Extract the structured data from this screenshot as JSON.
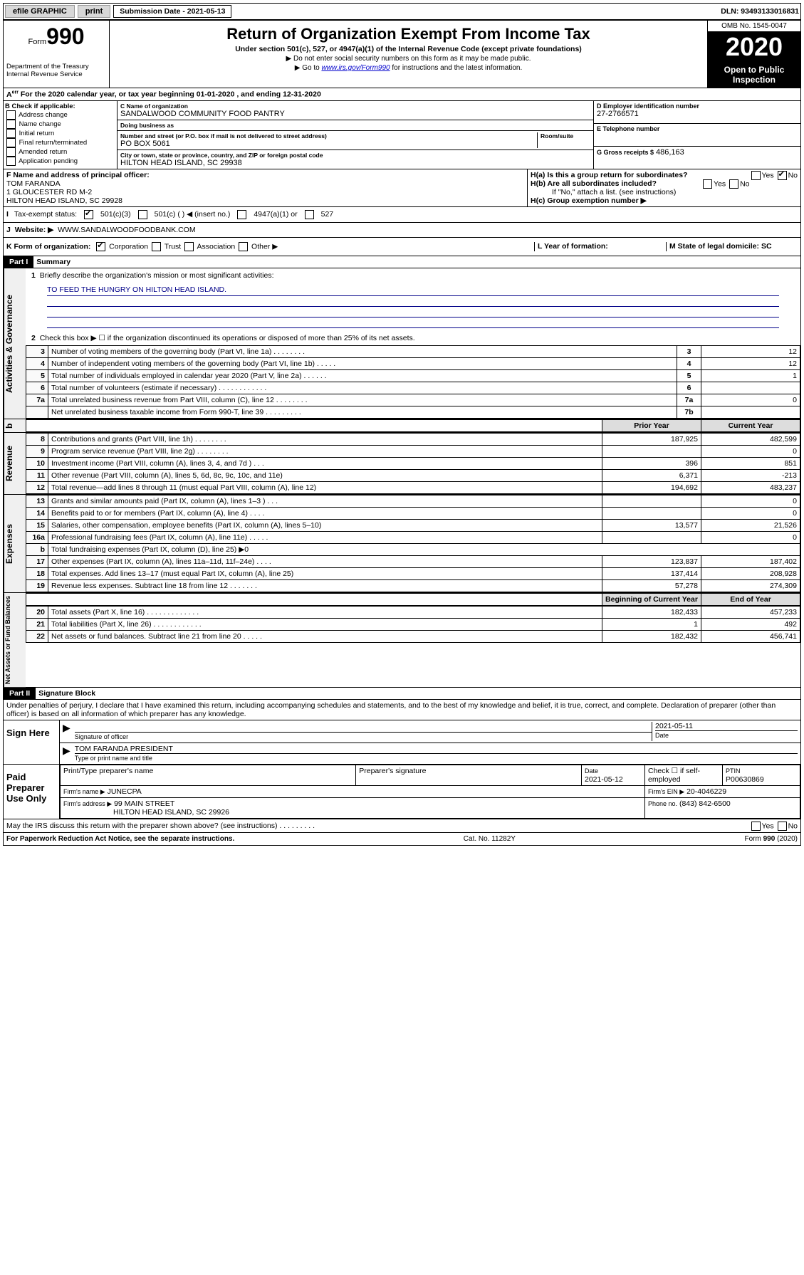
{
  "topbar": {
    "efile": "efile GRAPHIC",
    "print": "print",
    "sub_label": "Submission Date - 2021-05-13",
    "dln": "DLN: 93493133016831"
  },
  "header": {
    "form": "990",
    "dept": "Department of the Treasury\nInternal Revenue Service",
    "title": "Return of Organization Exempt From Income Tax",
    "sub": "Under section 501(c), 527, or 4947(a)(1) of the Internal Revenue Code (except private foundations)",
    "note1": "▶ Do not enter social security numbers on this form as it may be made public.",
    "note2": "▶ Go to www.irs.gov/Form990 for instructions and the latest information.",
    "omb": "OMB No. 1545-0047",
    "year": "2020",
    "open": "Open to Public Inspection"
  },
  "rowA": "For the 2020 calendar year, or tax year beginning 01-01-2020   , and ending 12-31-2020",
  "B": {
    "label": "B Check if applicable:",
    "items": [
      "Address change",
      "Name change",
      "Initial return",
      "Final return/terminated",
      "Amended return",
      "Application pending"
    ]
  },
  "C": {
    "name_lbl": "C Name of organization",
    "name": "SANDALWOOD COMMUNITY FOOD PANTRY",
    "dba_lbl": "Doing business as",
    "dba": "",
    "addr_lbl": "Number and street (or P.O. box if mail is not delivered to street address)",
    "room_lbl": "Room/suite",
    "addr": "PO BOX 5061",
    "city_lbl": "City or town, state or province, country, and ZIP or foreign postal code",
    "city": "HILTON HEAD ISLAND, SC  29938"
  },
  "D": {
    "lbl": "D Employer identification number",
    "val": "27-2766571"
  },
  "E": {
    "lbl": "E Telephone number",
    "val": ""
  },
  "G": {
    "lbl": "G Gross receipts $",
    "val": "486,163"
  },
  "F": {
    "lbl": "F  Name and address of principal officer:",
    "name": "TOM FARANDA",
    "addr1": "1 GLOUCESTER RD M-2",
    "addr2": "HILTON HEAD ISLAND, SC  29928"
  },
  "H": {
    "a": "H(a)  Is this a group return for subordinates?",
    "a_no": true,
    "b": "H(b)  Are all subordinates included?",
    "b_note": "If \"No,\" attach a list. (see instructions)",
    "c": "H(c)  Group exemption number ▶"
  },
  "I": {
    "lbl": "Tax-exempt status:",
    "c3": true,
    "c": "501(c) (  ) ◀ (insert no.)",
    "a1": "4947(a)(1) or",
    "s527": "527"
  },
  "J": {
    "lbl": "Website: ▶",
    "val": "WWW.SANDALWOODFOODBANK.COM"
  },
  "K": {
    "lbl": "K Form of organization:",
    "corp": true,
    "items": [
      "Corporation",
      "Trust",
      "Association",
      "Other ▶"
    ]
  },
  "L": {
    "lbl": "L Year of formation:",
    "val": ""
  },
  "M": {
    "lbl": "M State of legal domicile: SC"
  },
  "partI": {
    "hdr": "Part I",
    "title": "Summary"
  },
  "summary": {
    "l1": "Briefly describe the organization's mission or most significant activities:",
    "mission": "TO FEED THE HUNGRY ON HILTON HEAD ISLAND.",
    "l2": "Check this box ▶ ☐  if the organization discontinued its operations or disposed of more than 25% of its net assets.",
    "rows": [
      {
        "n": "3",
        "t": "Number of voting members of the governing body (Part VI, line 1a)   .    .    .    .    .    .    .    .",
        "c": "3",
        "v": "12"
      },
      {
        "n": "4",
        "t": "Number of independent voting members of the governing body (Part VI, line 1b)  .    .    .    .    .",
        "c": "4",
        "v": "12"
      },
      {
        "n": "5",
        "t": "Total number of individuals employed in calendar year 2020 (Part V, line 2a)   .    .    .    .    .    .",
        "c": "5",
        "v": "1"
      },
      {
        "n": "6",
        "t": "Total number of volunteers (estimate if necessary)   .    .    .    .    .    .    .    .    .    .    .    .",
        "c": "6",
        "v": ""
      },
      {
        "n": "7a",
        "t": "Total unrelated business revenue from Part VIII, column (C), line 12   .    .    .    .    .    .    .    .",
        "c": "7a",
        "v": "0"
      },
      {
        "n": "",
        "t": "Net unrelated business taxable income from Form 990-T, line 39   .    .    .    .    .    .    .    .    .",
        "c": "7b",
        "v": ""
      }
    ],
    "colhdr_prior": "Prior Year",
    "colhdr_curr": "Current Year"
  },
  "revenue": [
    {
      "n": "8",
      "t": "Contributions and grants (Part VIII, line 1h)   .    .    .    .    .    .    .    .",
      "p": "187,925",
      "c": "482,599"
    },
    {
      "n": "9",
      "t": "Program service revenue (Part VIII, line 2g)   .    .    .    .    .    .    .    .",
      "p": "",
      "c": "0"
    },
    {
      "n": "10",
      "t": "Investment income (Part VIII, column (A), lines 3, 4, and 7d )   .    .    .",
      "p": "396",
      "c": "851"
    },
    {
      "n": "11",
      "t": "Other revenue (Part VIII, column (A), lines 5, 6d, 8c, 9c, 10c, and 11e)",
      "p": "6,371",
      "c": "-213"
    },
    {
      "n": "12",
      "t": "Total revenue—add lines 8 through 11 (must equal Part VIII, column (A), line 12)",
      "p": "194,692",
      "c": "483,237"
    }
  ],
  "expenses": [
    {
      "n": "13",
      "t": "Grants and similar amounts paid (Part IX, column (A), lines 1–3 )   .    .    .",
      "p": "",
      "c": "0"
    },
    {
      "n": "14",
      "t": "Benefits paid to or for members (Part IX, column (A), line 4)   .    .    .    .",
      "p": "",
      "c": "0"
    },
    {
      "n": "15",
      "t": "Salaries, other compensation, employee benefits (Part IX, column (A), lines 5–10)",
      "p": "13,577",
      "c": "21,526"
    },
    {
      "n": "16a",
      "t": "Professional fundraising fees (Part IX, column (A), line 11e)   .    .    .    .    .",
      "p": "",
      "c": "0"
    },
    {
      "n": "b",
      "t": "Total fundraising expenses (Part IX, column (D), line 25) ▶0",
      "p": "—",
      "c": "—"
    },
    {
      "n": "17",
      "t": "Other expenses (Part IX, column (A), lines 11a–11d, 11f–24e)   .    .    .    .",
      "p": "123,837",
      "c": "187,402"
    },
    {
      "n": "18",
      "t": "Total expenses. Add lines 13–17 (must equal Part IX, column (A), line 25)",
      "p": "137,414",
      "c": "208,928"
    },
    {
      "n": "19",
      "t": "Revenue less expenses. Subtract line 18 from line 12   .    .    .    .    .    .    .",
      "p": "57,278",
      "c": "274,309"
    }
  ],
  "netassets": {
    "hdr_beg": "Beginning of Current Year",
    "hdr_end": "End of Year",
    "rows": [
      {
        "n": "20",
        "t": "Total assets (Part X, line 16)   .    .    .    .    .    .    .    .    .    .    .    .    .",
        "p": "182,433",
        "c": "457,233"
      },
      {
        "n": "21",
        "t": "Total liabilities (Part X, line 26)   .    .    .    .    .    .    .    .    .    .    .    .",
        "p": "1",
        "c": "492"
      },
      {
        "n": "22",
        "t": "Net assets or fund balances. Subtract line 21 from line 20   .    .    .    .    .",
        "p": "182,432",
        "c": "456,741"
      }
    ]
  },
  "partII": {
    "hdr": "Part II",
    "title": "Signature Block",
    "decl": "Under penalties of perjury, I declare that I have examined this return, including accompanying schedules and statements, and to the best of my knowledge and belief, it is true, correct, and complete. Declaration of preparer (other than officer) is based on all information of which preparer has any knowledge."
  },
  "sign": {
    "lbl": "Sign Here",
    "sig": "Signature of officer",
    "date": "2021-05-11",
    "date_lbl": "Date",
    "name": "TOM FARANDA PRESIDENT",
    "name_lbl": "Type or print name and title"
  },
  "paid": {
    "lbl": "Paid Preparer Use Only",
    "h1": "Print/Type preparer's name",
    "h2": "Preparer's signature",
    "h3": "Date",
    "h3v": "2021-05-12",
    "h4": "Check ☐ if self-employed",
    "h5": "PTIN",
    "h5v": "P00630869",
    "firm_lbl": "Firm's name   ▶",
    "firm": "JUNECPA",
    "ein_lbl": "Firm's EIN ▶",
    "ein": "20-4046229",
    "addr_lbl": "Firm's address ▶",
    "addr1": "99 MAIN STREET",
    "addr2": "HILTON HEAD ISLAND, SC  29926",
    "ph_lbl": "Phone no.",
    "ph": "(843) 842-6500"
  },
  "discuss": "May the IRS discuss this return with the preparer shown above? (see instructions)    .    .    .    .    .    .    .    .    .",
  "footer": {
    "l": "For Paperwork Reduction Act Notice, see the separate instructions.",
    "c": "Cat. No. 11282Y",
    "r": "Form 990 (2020)"
  }
}
